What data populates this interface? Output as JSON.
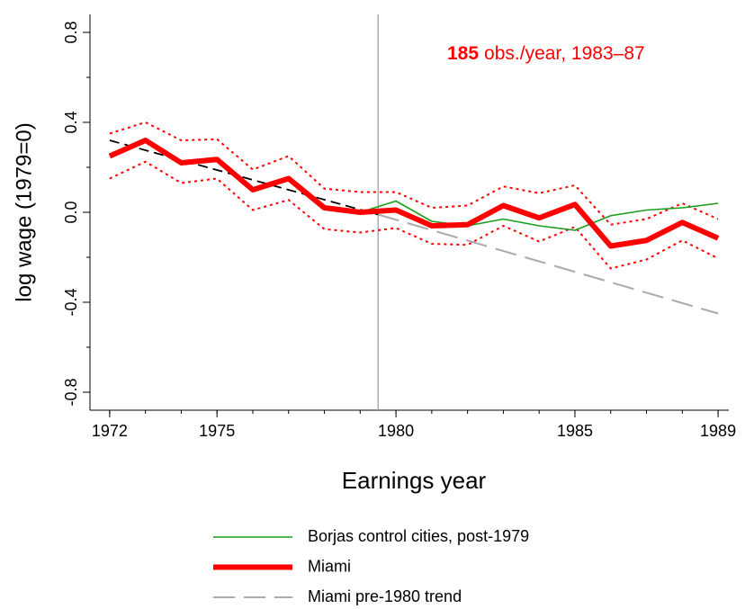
{
  "chart_data": {
    "type": "line",
    "annotation_number": "185",
    "annotation_text": "obs./year, 1983–87",
    "annotation_color": "#ff0000",
    "x_label": "Earnings year",
    "y_label": "log wage (1979=0)",
    "xlim": [
      1971.45,
      1989.3
    ],
    "ylim": [
      -0.88,
      0.88
    ],
    "xticks": [
      1972,
      1975,
      1980,
      1985,
      1989
    ],
    "xminorticks": [
      1972,
      1973,
      1974,
      1975,
      1976,
      1977,
      1978,
      1979,
      1980,
      1981,
      1982,
      1983,
      1984,
      1985,
      1986,
      1987,
      1988,
      1989
    ],
    "yticks": [
      -0.8,
      -0.4,
      {
        "value": 0,
        "label": "0.0"
      },
      0.4,
      0.8
    ],
    "yminorticks": [
      -0.6,
      -0.2,
      0.2,
      0.6
    ],
    "vline": 1979.5,
    "vline_color": "#999999",
    "series": [
      {
        "color": "#ff0000",
        "style": "dotted",
        "x": [
          1972,
          1973,
          1974,
          1975,
          1976,
          1977,
          1978,
          1979,
          1980,
          1981,
          1982,
          1983,
          1984,
          1985,
          1986,
          1987,
          1988,
          1989
        ],
        "values": [
          0.35,
          0.4,
          0.32,
          0.325,
          0.19,
          0.25,
          0.105,
          0.09,
          0.09,
          0.02,
          0.03,
          0.115,
          0.085,
          0.12,
          -0.055,
          -0.03,
          0.04,
          -0.03
        ]
      },
      {
        "color": "#ff0000",
        "style": "dotted",
        "x": [
          1972,
          1973,
          1974,
          1975,
          1976,
          1977,
          1978,
          1979,
          1980,
          1981,
          1982,
          1983,
          1984,
          1985,
          1986,
          1987,
          1988,
          1989
        ],
        "values": [
          0.15,
          0.225,
          0.13,
          0.15,
          0.01,
          0.055,
          -0.075,
          -0.09,
          -0.07,
          -0.14,
          -0.145,
          -0.06,
          -0.13,
          -0.065,
          -0.25,
          -0.21,
          -0.125,
          -0.205
        ]
      },
      {
        "color": "#000000",
        "style": "dashed",
        "x": [
          1972,
          1979.5
        ],
        "values": [
          0.32,
          -0.01
        ]
      },
      {
        "name": "Miami pre-1980 trend",
        "color": "#aaaaaa",
        "style": "long-dashed",
        "x": [
          1979.5,
          1989
        ],
        "values": [
          -0.01,
          -0.45
        ]
      },
      {
        "name": "Borjas control cities, post-1979",
        "color": "#1a9e1a",
        "style": "thin",
        "x": [
          1979,
          1980,
          1981,
          1982,
          1983,
          1984,
          1985,
          1986,
          1987,
          1988,
          1989
        ],
        "values": [
          0,
          0.05,
          -0.04,
          -0.06,
          -0.03,
          -0.06,
          -0.08,
          -0.015,
          0.01,
          0.02,
          0.04
        ]
      },
      {
        "name": "Miami",
        "color": "#ff0000",
        "style": "thick",
        "x": [
          1972,
          1973,
          1974,
          1975,
          1976,
          1977,
          1978,
          1979,
          1980,
          1981,
          1982,
          1983,
          1984,
          1985,
          1986,
          1987,
          1988,
          1989
        ],
        "values": [
          0.25,
          0.32,
          0.22,
          0.235,
          0.1,
          0.15,
          0.02,
          0.0,
          0.01,
          -0.06,
          -0.055,
          0.03,
          -0.025,
          0.035,
          -0.15,
          -0.125,
          -0.045,
          -0.115
        ]
      }
    ],
    "legend_order": [
      4,
      5,
      3
    ]
  }
}
